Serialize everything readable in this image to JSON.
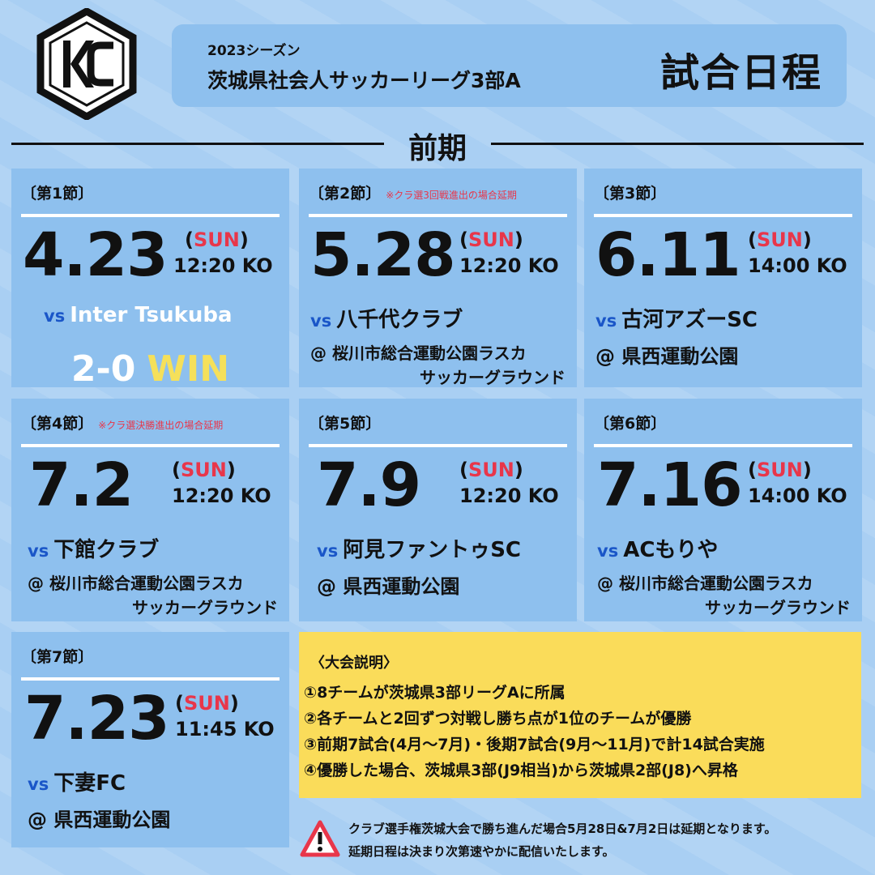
{
  "header": {
    "season": "2023シーズン",
    "league": "茨城県社会人サッカーリーグ3部A",
    "title": "試合日程",
    "section": "前期"
  },
  "colors": {
    "background": "#a9cff3",
    "card": "#8ec0ee",
    "accent_red": "#e8364a",
    "vs_blue": "#1a56c8",
    "win_yellow": "#f5e05a",
    "info_yellow": "#fadc5a"
  },
  "matches": [
    {
      "round": "〔第1節〕",
      "note": "",
      "date": "4.23",
      "day_open": "(",
      "day": "SUN",
      "day_close": ")",
      "kickoff": "12:20 KO",
      "vs": "vs",
      "opponent": "Inter Tsukuba",
      "score": "2-0",
      "outcome": "WIN"
    },
    {
      "round": "〔第2節〕",
      "note": "※クラ選3回戦進出の場合延期",
      "date": "5.28",
      "day_open": "(",
      "day": "SUN",
      "day_close": ")",
      "kickoff": "12:20 KO",
      "vs": "vs",
      "opponent": "八千代クラブ",
      "venue_line1": "@ 桜川市総合運動公園ラスカ",
      "venue_line2": "サッカーグラウンド"
    },
    {
      "round": "〔第3節〕",
      "note": "",
      "date": "6.11",
      "day_open": "(",
      "day": "SUN",
      "day_close": ")",
      "kickoff": "14:00 KO",
      "vs": "vs",
      "opponent": "古河アズーSC",
      "venue_line1": "@ 県西運動公園"
    },
    {
      "round": "〔第4節〕",
      "note": "※クラ選決勝進出の場合延期",
      "date": "7.2",
      "day_open": "(",
      "day": "SUN",
      "day_close": ")",
      "kickoff": "12:20 KO",
      "vs": "vs",
      "opponent": "下館クラブ",
      "venue_line1": "@ 桜川市総合運動公園ラスカ",
      "venue_line2": "サッカーグラウンド"
    },
    {
      "round": "〔第5節〕",
      "note": "",
      "date": "7.9",
      "day_open": "(",
      "day": "SUN",
      "day_close": ")",
      "kickoff": "12:20 KO",
      "vs": "vs",
      "opponent": "阿見ファントゥSC",
      "venue_line1": "@ 県西運動公園"
    },
    {
      "round": "〔第6節〕",
      "note": "",
      "date": "7.16",
      "day_open": "(",
      "day": "SUN",
      "day_close": ")",
      "kickoff": "14:00 KO",
      "vs": "vs",
      "opponent": "ACもりや",
      "venue_line1": "@ 桜川市総合運動公園ラスカ",
      "venue_line2": "サッカーグラウンド"
    },
    {
      "round": "〔第7節〕",
      "note": "",
      "date": "7.23",
      "day_open": "(",
      "day": "SUN",
      "day_close": ")",
      "kickoff": "11:45 KO",
      "vs": "vs",
      "opponent": "下妻FC",
      "venue_line1": "@ 県西運動公園"
    }
  ],
  "info": {
    "title": "〈大会説明〉",
    "items": [
      "①8チームが茨城県3部リーグAに所属",
      "②各チームと2回ずつ対戦し勝ち点が1位のチームが優勝",
      "③前期7試合(4月〜7月)・後期7試合(9月〜11月)で計14試合実施",
      "④優勝した場合、茨城県3部(J9相当)から茨城県2部(J8)へ昇格"
    ]
  },
  "notice": {
    "icon": "warning-icon",
    "line1": "クラブ選手権茨城大会で勝ち進んだ場合5月28日&7月2日は延期となります。",
    "line2": "延期日程は決まり次第速やかに配信いたします。"
  }
}
